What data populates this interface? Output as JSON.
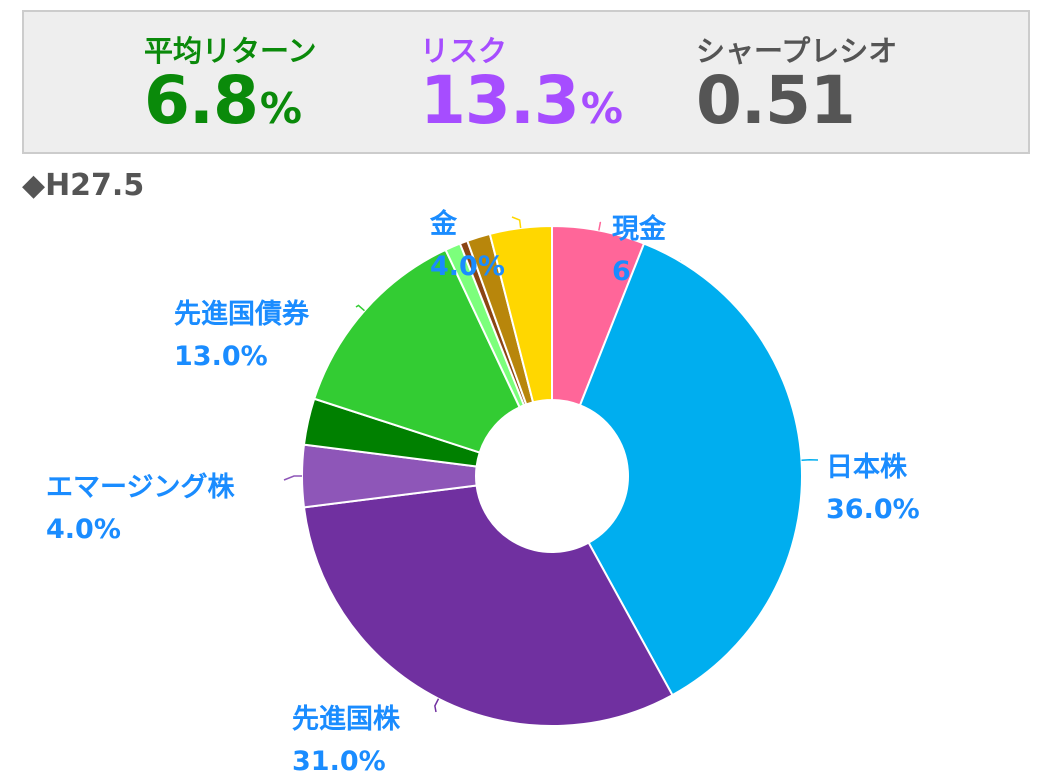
{
  "stats": {
    "return": {
      "label": "平均リターン",
      "value": "6.8",
      "unit": "%",
      "color": "#0a8a0a"
    },
    "risk": {
      "label": "リスク",
      "value": "13.3",
      "unit": "%",
      "color": "#a64dff"
    },
    "sharpe": {
      "label": "シャープレシオ",
      "value": "0.51",
      "color": "#555555"
    }
  },
  "section": {
    "title": "◆H27.5"
  },
  "chart_data": {
    "type": "pie",
    "donut": true,
    "label_color": "#1a8cff",
    "slices": [
      {
        "name": "現金",
        "value": 6.0,
        "label": "6.0%",
        "color": "#ff6699",
        "show_label": true
      },
      {
        "name": "日本株",
        "value": 36.0,
        "label": "36.0%",
        "color": "#00aeef",
        "show_label": true
      },
      {
        "name": "先進国株",
        "value": 31.0,
        "label": "31.0%",
        "color": "#7030a0",
        "show_label": true
      },
      {
        "name": "エマージング株",
        "value": 4.0,
        "label": "4.0%",
        "color": "#8e56b8",
        "show_label": true
      },
      {
        "name": "",
        "value": 3.0,
        "color": "#008000",
        "show_label": false
      },
      {
        "name": "先進国債券",
        "value": 13.0,
        "label": "13.0%",
        "color": "#33cc33",
        "show_label": true
      },
      {
        "name": "",
        "value": 1.0,
        "color": "#7cff7c",
        "show_label": false
      },
      {
        "name": "",
        "value": 0.5,
        "color": "#8b4513",
        "show_label": false
      },
      {
        "name": "",
        "value": 1.5,
        "color": "#b8860b",
        "show_label": false
      },
      {
        "name": "金",
        "value": 4.0,
        "label": "4.0%",
        "color": "#ffd700",
        "show_label": true
      }
    ]
  }
}
